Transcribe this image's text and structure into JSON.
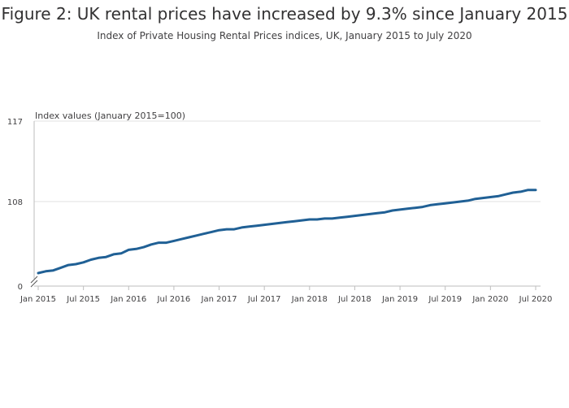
{
  "figure": {
    "title": "Figure 2: UK rental prices have increased by 9.3% since January 2015",
    "subtitle": "Index of Private Housing Rental Prices indices, UK, January 2015 to July 2020"
  },
  "colors": {
    "line": "#206095",
    "grid": "#e0e0e0",
    "axis": "#bebebe",
    "text": "#414042"
  },
  "chart_data": {
    "type": "line",
    "title": "Figure 2: UK rental prices have increased by 9.3% since January 2015",
    "subtitle": "Index of Private Housing Rental Prices indices, UK, January 2015 to July 2020",
    "xlabel": "",
    "ylabel": "Index values (January 2015=100)",
    "y_axis_break": true,
    "y_ticks": [
      0,
      108,
      117
    ],
    "y_tick_labels": [
      "0",
      "108",
      "117"
    ],
    "grid": true,
    "x_ticks": [
      "2015-01",
      "2015-07",
      "2016-01",
      "2016-07",
      "2017-01",
      "2017-07",
      "2018-01",
      "2018-07",
      "2019-01",
      "2019-07",
      "2020-01",
      "2020-07"
    ],
    "x_tick_labels": [
      "Jan 2015",
      "Jul 2015",
      "Jan 2016",
      "Jul 2016",
      "Jan 2017",
      "Jul 2017",
      "Jan 2018",
      "Jul 2018",
      "Jan 2019",
      "Jul 2019",
      "Jan 2020",
      "Jul 2020"
    ],
    "x": [
      "2015-01",
      "2015-02",
      "2015-03",
      "2015-04",
      "2015-05",
      "2015-06",
      "2015-07",
      "2015-08",
      "2015-09",
      "2015-10",
      "2015-11",
      "2015-12",
      "2016-01",
      "2016-02",
      "2016-03",
      "2016-04",
      "2016-05",
      "2016-06",
      "2016-07",
      "2016-08",
      "2016-09",
      "2016-10",
      "2016-11",
      "2016-12",
      "2017-01",
      "2017-02",
      "2017-03",
      "2017-04",
      "2017-05",
      "2017-06",
      "2017-07",
      "2017-08",
      "2017-09",
      "2017-10",
      "2017-11",
      "2017-12",
      "2018-01",
      "2018-02",
      "2018-03",
      "2018-04",
      "2018-05",
      "2018-06",
      "2018-07",
      "2018-08",
      "2018-09",
      "2018-10",
      "2018-11",
      "2018-12",
      "2019-01",
      "2019-02",
      "2019-03",
      "2019-04",
      "2019-05",
      "2019-06",
      "2019-07",
      "2019-08",
      "2019-09",
      "2019-10",
      "2019-11",
      "2019-12",
      "2020-01",
      "2020-02",
      "2020-03",
      "2020-04",
      "2020-05",
      "2020-06",
      "2020-07"
    ],
    "series": [
      {
        "values": [
          100.0,
          100.2,
          100.3,
          100.6,
          100.9,
          101.0,
          101.2,
          101.5,
          101.7,
          101.8,
          102.1,
          102.2,
          102.6,
          102.7,
          102.9,
          103.2,
          103.4,
          103.4,
          103.6,
          103.8,
          104.0,
          104.2,
          104.4,
          104.6,
          104.8,
          104.9,
          104.9,
          105.1,
          105.2,
          105.3,
          105.4,
          105.5,
          105.6,
          105.7,
          105.8,
          105.9,
          106.0,
          106.0,
          106.1,
          106.1,
          106.2,
          106.3,
          106.4,
          106.5,
          106.6,
          106.7,
          106.8,
          107.0,
          107.1,
          107.2,
          107.3,
          107.4,
          107.6,
          107.7,
          107.8,
          107.9,
          108.0,
          108.1,
          108.3,
          108.4,
          108.5,
          108.6,
          108.8,
          109.0,
          109.1,
          109.3,
          109.3
        ]
      }
    ]
  }
}
